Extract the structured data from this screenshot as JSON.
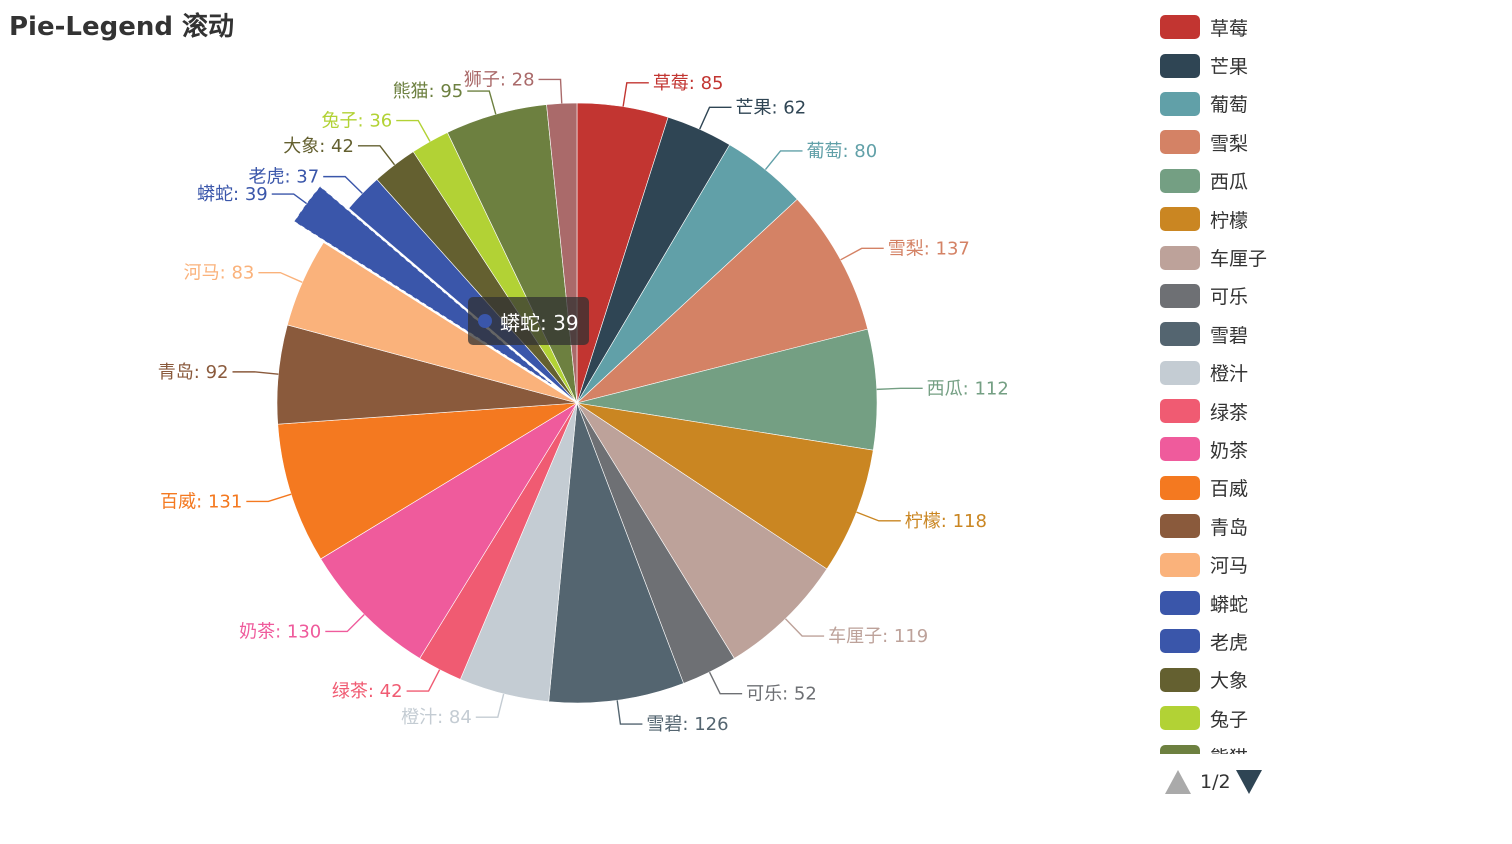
{
  "chart_data": {
    "type": "pie",
    "title": "Pie-Legend 滚动",
    "start_angle_deg": 90,
    "clockwise": true,
    "label_format": "{name}: {value}",
    "highlighted": "蟒蛇",
    "slices": [
      {
        "name": "草莓",
        "value": 85,
        "color": "#c23531"
      },
      {
        "name": "芒果",
        "value": 62,
        "color": "#2f4554"
      },
      {
        "name": "葡萄",
        "value": 80,
        "color": "#61a0a8"
      },
      {
        "name": "雪梨",
        "value": 137,
        "color": "#d48265"
      },
      {
        "name": "西瓜",
        "value": 112,
        "color": "#749f83"
      },
      {
        "name": "柠檬",
        "value": 118,
        "color": "#ca8622"
      },
      {
        "name": "车厘子",
        "value": 119,
        "color": "#bda29a"
      },
      {
        "name": "可乐",
        "value": 52,
        "color": "#6e7074"
      },
      {
        "name": "雪碧",
        "value": 126,
        "color": "#546570"
      },
      {
        "name": "橙汁",
        "value": 84,
        "color": "#c4ccd3"
      },
      {
        "name": "绿茶",
        "value": 42,
        "color": "#f05b72"
      },
      {
        "name": "奶茶",
        "value": 130,
        "color": "#ef5b9c"
      },
      {
        "name": "百威",
        "value": 131,
        "color": "#f47920"
      },
      {
        "name": "青岛",
        "value": 92,
        "color": "#8a5a3c"
      },
      {
        "name": "河马",
        "value": 83,
        "color": "#fab27b"
      },
      {
        "name": "蟒蛇",
        "value": 39,
        "color": "#3a56aa"
      },
      {
        "name": "老虎",
        "value": 37,
        "color": "#3a56aa"
      },
      {
        "name": "大象",
        "value": 42,
        "color": "#646030"
      },
      {
        "name": "兔子",
        "value": 36,
        "color": "#b2d235"
      },
      {
        "name": "熊猫",
        "value": 95,
        "color": "#6d8040"
      },
      {
        "name": "狮子",
        "value": 28,
        "color": "#aa6a6a"
      }
    ],
    "legend": {
      "placement": "right",
      "scroll": true,
      "page_info": "1/2"
    }
  },
  "tooltip": {
    "text": "蟒蛇: 39",
    "color": "#3a56aa"
  }
}
